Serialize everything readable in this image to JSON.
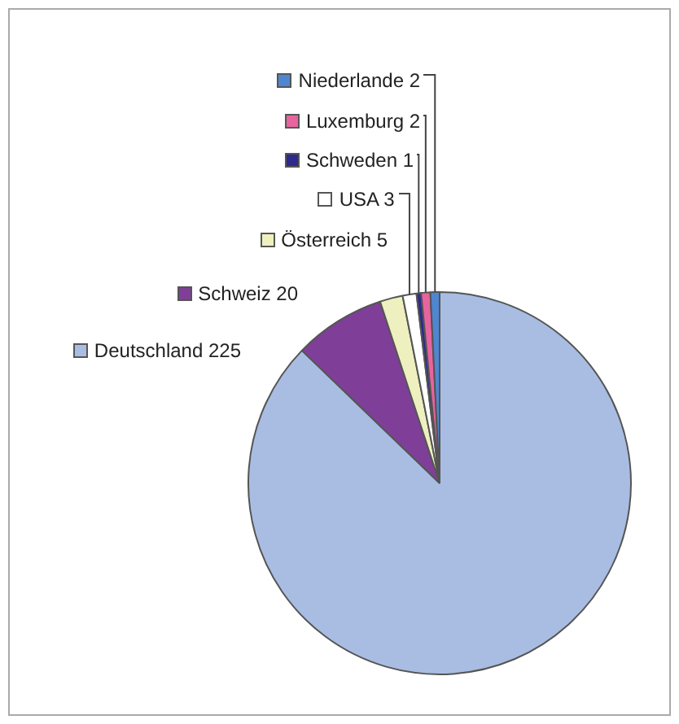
{
  "chart_data": {
    "type": "pie",
    "categories": [
      "Deutschland 225",
      "Schweiz 20",
      "Österreich 5",
      "USA 3",
      "Schweden 1",
      "Luxemburg 2",
      "Niederlande 2"
    ],
    "values": [
      225,
      20,
      5,
      3,
      1,
      2,
      2
    ],
    "colors": [
      "#a9bde3",
      "#7f3f98",
      "#eef0c0",
      "#ffffff",
      "#2e2a8c",
      "#e8649e",
      "#4f86d0"
    ],
    "legend": "top left"
  }
}
